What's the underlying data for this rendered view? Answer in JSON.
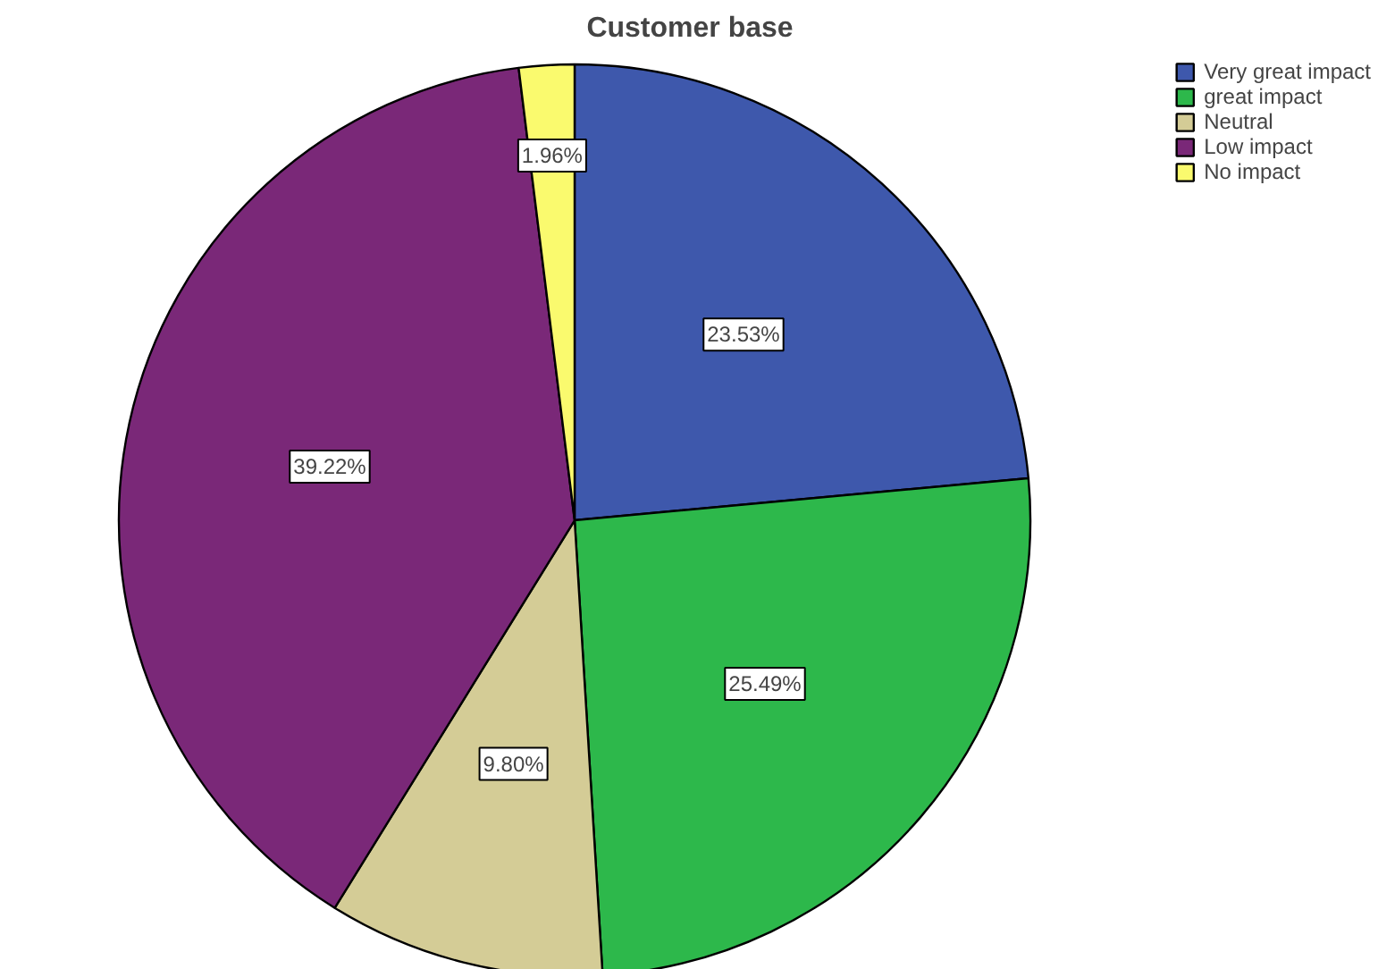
{
  "chart_data": {
    "type": "pie",
    "title": "Customer base",
    "categories": [
      "Very great impact",
      "great impact",
      "Neutral",
      "Low impact",
      "No impact"
    ],
    "values": [
      23.53,
      25.49,
      9.8,
      39.22,
      1.96
    ],
    "colors": [
      "#3e58ac",
      "#2db84b",
      "#d4cc96",
      "#7a2878",
      "#fafa6e"
    ],
    "value_labels": [
      "23.53%",
      "25.49%",
      "9.80%",
      "39.22%",
      "1.96%"
    ],
    "legend": "top right"
  }
}
